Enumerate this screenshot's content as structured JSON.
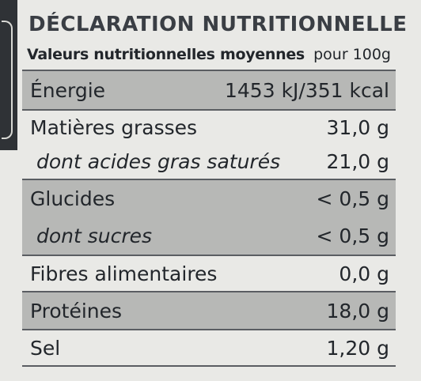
{
  "title": "DÉCLARATION NUTRITIONNELLE",
  "subtitle": {
    "label": "Valeurs nutritionnelles moyennes",
    "basis": "pour 100g"
  },
  "rows": [
    {
      "name": "Énergie",
      "value": "1453 kJ/351 kcal"
    },
    {
      "name": "Matières grasses",
      "value": "31,0 g"
    },
    {
      "name": "dont acides gras saturés",
      "value": "21,0 g"
    },
    {
      "name": "Glucides",
      "value": "< 0,5 g"
    },
    {
      "name": "dont sucres",
      "value": "< 0,5 g"
    },
    {
      "name": "Fibres alimentaires",
      "value": "0,0 g"
    },
    {
      "name": "Protéines",
      "value": "18,0 g"
    },
    {
      "name": "Sel",
      "value": "1,20 g"
    }
  ]
}
